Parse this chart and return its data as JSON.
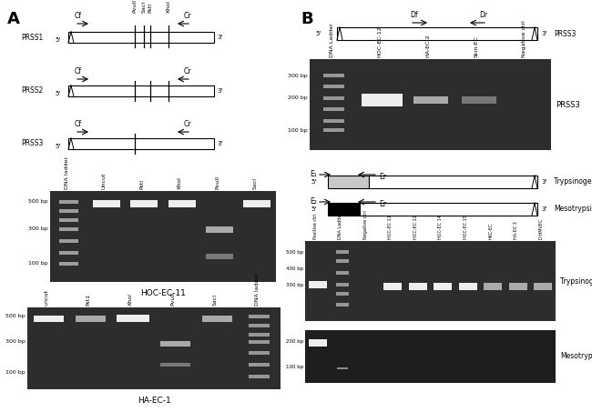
{
  "fig_width": 6.5,
  "fig_height": 4.53,
  "bg_color": "#ffffff",
  "gel_bg": "#2d2d2d",
  "gel_bg_dark": "#1e1e1e",
  "band_bright": "#eeeeee",
  "band_medium": "#aaaaaa",
  "band_dim": "#787878",
  "band_verydim": "#505050",
  "gel1_title": "HOC-EC-11",
  "gel2_title": "HA-EC-1",
  "gel1_lanes": [
    "DNA ladder",
    "Uncut",
    "PstI",
    "XhoI",
    "PvuII",
    "SacI"
  ],
  "gel2_lanes": [
    "uncut",
    "Pst1",
    "XhoI",
    "PvuII",
    "SacI",
    "DNA ladder"
  ],
  "gel3_lanes": [
    "DNA Ladder",
    "HOC-EC-12",
    "HA-EC-2",
    "Skin-EC",
    "Negative ctrl"
  ],
  "gel4_lanes": [
    "Positive ctrl",
    "DNA Ladder",
    "Negative ctrl",
    "HOC-EC 11",
    "HOC-EC 12",
    "HOC-EC 14",
    "HOC-EC 15",
    "HKC-EC",
    "HA-EC 3",
    "D-HMVEC"
  ]
}
